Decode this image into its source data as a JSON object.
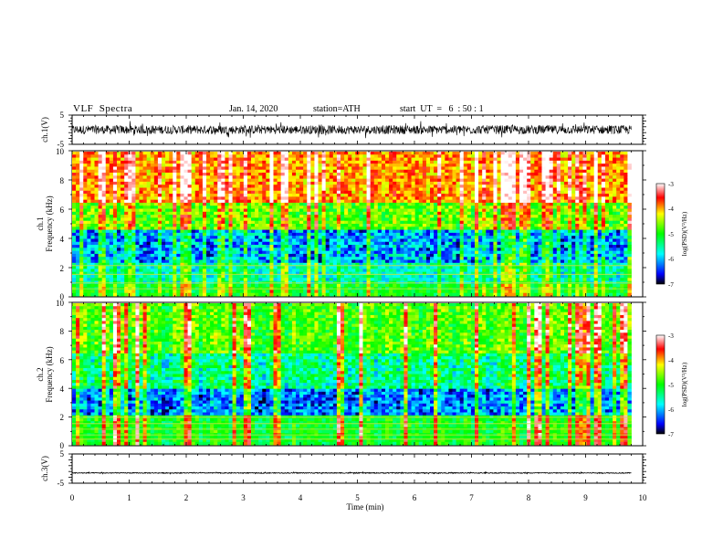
{
  "header": {
    "title": "VLF  Spectra",
    "date": "Jan. 14, 2020",
    "station": "station=ATH",
    "start_ut": "start  UT  =   6  : 50 : 1"
  },
  "x_axis": {
    "label": "Time  (min)",
    "range": [
      0,
      10
    ],
    "ticks": [
      "0",
      "1",
      "2",
      "3",
      "4",
      "5",
      "6",
      "7",
      "8",
      "9",
      "10"
    ]
  },
  "panels": {
    "ch1_wave": {
      "ylabel": "ch.1(V)",
      "ticks": [
        "5",
        "-5"
      ]
    },
    "ch1_spec": {
      "ylabel_top": "ch.1",
      "ylabel": "Frequency  (kHz)",
      "ticks": [
        "10",
        "8",
        "6",
        "4",
        "2",
        "0"
      ]
    },
    "ch2_spec": {
      "ylabel_top": "ch.2",
      "ylabel": "Frequency  (kHz)",
      "ticks": [
        "10",
        "8",
        "6",
        "4",
        "2",
        "0"
      ]
    },
    "ch3_wave": {
      "ylabel": "ch.3(V)",
      "ticks": [
        "5",
        "-5"
      ]
    }
  },
  "colorbar": {
    "label": "log(PSD)(V²/Hz)",
    "ticks": [
      "-3",
      "-4",
      "-5",
      "-6",
      "-7"
    ]
  },
  "chart_data": [
    {
      "type": "line",
      "name": "ch1-waveform",
      "x_range": [
        0,
        9.8
      ],
      "ylim": [
        -5,
        5
      ],
      "y_center": 0,
      "y_amplitude_typical": 1.5,
      "color": "#000000"
    },
    {
      "type": "heatmap",
      "name": "ch1-spectrogram",
      "x_range": [
        0,
        9.8
      ],
      "ylim": [
        0,
        10
      ],
      "zlim": [
        -7,
        -3
      ],
      "colors": [
        "#000000",
        "#0000ff",
        "#00ffff",
        "#00ff00",
        "#ffff00",
        "#ff0000",
        "#ffffff"
      ]
    },
    {
      "type": "heatmap",
      "name": "ch2-spectrogram",
      "x_range": [
        0,
        9.8
      ],
      "ylim": [
        0,
        10
      ],
      "zlim": [
        -7,
        -3
      ],
      "colors": [
        "#000000",
        "#0000ff",
        "#00ffff",
        "#00ff00",
        "#ffff00",
        "#ff0000",
        "#ffffff"
      ]
    },
    {
      "type": "line",
      "name": "ch3-waveform",
      "x_range": [
        0,
        9.8
      ],
      "ylim": [
        -5,
        5
      ],
      "y_center": -1.5,
      "y_amplitude_typical": 0.15,
      "color": "#000000"
    }
  ]
}
